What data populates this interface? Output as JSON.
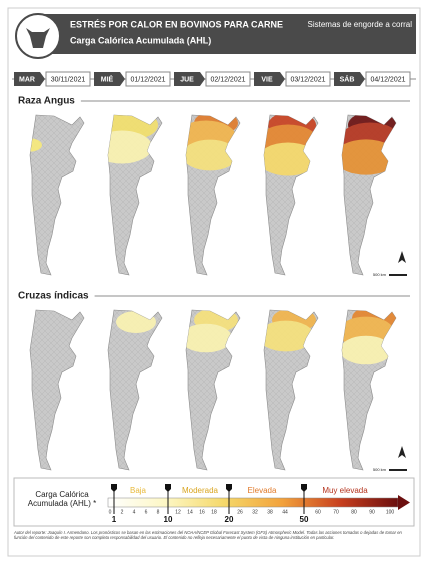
{
  "header": {
    "title": "ESTRÉS POR CALOR EN BOVINOS PARA CARNE",
    "title_right": "Sistemas de engorde a corral",
    "subtitle": "Carga Calórica Acumulada (AHL)"
  },
  "dates": [
    {
      "day": "MAR",
      "date": "30/11/2021"
    },
    {
      "day": "MIÉ",
      "date": "01/12/2021"
    },
    {
      "day": "JUE",
      "date": "02/12/2021"
    },
    {
      "day": "VIE",
      "date": "03/12/2021"
    },
    {
      "day": "SÁB",
      "date": "04/12/2021"
    }
  ],
  "sections": [
    {
      "title": "Raza Angus",
      "scale": "500 km"
    },
    {
      "title": "Cruzas índicas",
      "scale": "500 km"
    }
  ],
  "legend": {
    "title": "Carga Calórica Acumulada (AHL) *",
    "categories": [
      "Baja",
      "Moderada",
      "Elevada",
      "Muy elevada"
    ],
    "ticks": [
      "0",
      "2",
      "4",
      "6",
      "8",
      "12",
      "14",
      "16",
      "18",
      "26",
      "32",
      "38",
      "44",
      "60",
      "70",
      "80",
      "90",
      "100"
    ],
    "markers": [
      "1",
      "10",
      "20",
      "50"
    ]
  },
  "footer": "Autor del reporte: Joaquín I. Armendano. Los pronósticos se basan en las estimaciones del NOAA/NCEP Global Forecast System (GFS) Atmospheric Model. Todas las acciones tomadas o dejadas de tomar en función del contenido de este reporte son completa responsabilidad del usuario. El contenido no refleja necesariamente el punto de vista de ninguna institución en particular."
}
